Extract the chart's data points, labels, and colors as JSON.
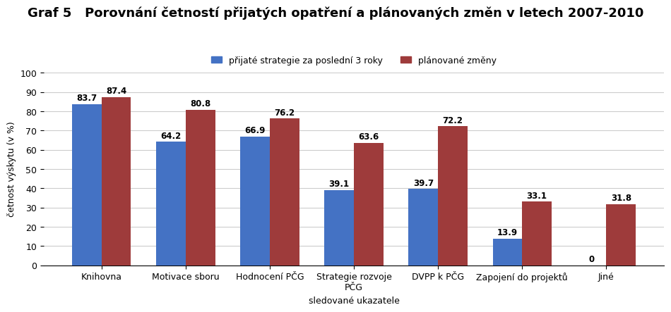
{
  "title": "Graf 5   Porovnání četností přijatých opatření a plánovaných změn v letech 2007-2010",
  "legend_labels": [
    "přijaté strategie za poslední 3 roky",
    "plánované změny"
  ],
  "categories": [
    "Knihovna",
    "Motivace sboru",
    "Hodnocení PČG",
    "Strategie rozvoje\nPČG",
    "DVPP k PČG",
    "Zapojení do projektů",
    "Jiné"
  ],
  "series1_values": [
    83.7,
    64.2,
    66.9,
    39.1,
    39.7,
    13.9,
    0
  ],
  "series2_values": [
    87.4,
    80.8,
    76.2,
    63.6,
    72.2,
    33.1,
    31.8
  ],
  "color1": "#4472C4",
  "color2": "#9E3B3B",
  "ylabel": "četnost výskytu (v %)",
  "xlabel": "sledované ukazatele",
  "ylim": [
    0,
    100
  ],
  "yticks": [
    0,
    10,
    20,
    30,
    40,
    50,
    60,
    70,
    80,
    90,
    100
  ],
  "bar_width": 0.35,
  "title_fontsize": 13,
  "label_fontsize": 9,
  "tick_fontsize": 9,
  "ylabel_fontsize": 9,
  "xlabel_fontsize": 9,
  "legend_fontsize": 9,
  "value_fontsize": 8.5,
  "grid_color": "#cccccc",
  "background_color": "#ffffff",
  "plot_bg_color": "#ffffff"
}
